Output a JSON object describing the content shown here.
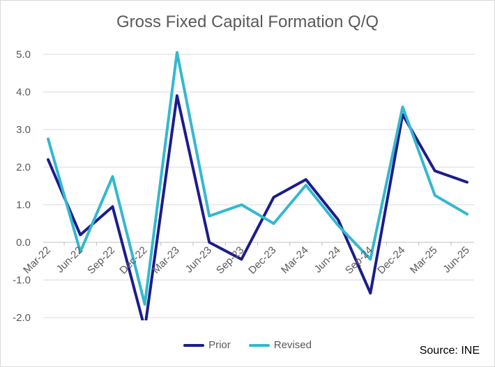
{
  "chart_data": {
    "type": "line",
    "title": "Gross Fixed Capital Formation Q/Q",
    "categories": [
      "Mar-22",
      "Jun-22",
      "Sep-22",
      "Dec-22",
      "Mar-23",
      "Jun-23",
      "Sep-23",
      "Dec-23",
      "Mar-24",
      "Jun-24",
      "Sep-24",
      "Dec-24",
      "Mar-25",
      "Jun-25"
    ],
    "series": [
      {
        "name": "Prior",
        "color": "#1c1c8c",
        "values": [
          2.2,
          0.2,
          0.95,
          -2.3,
          3.9,
          0.0,
          -0.45,
          1.2,
          1.67,
          0.6,
          -1.35,
          3.4,
          1.9,
          1.6
        ]
      },
      {
        "name": "Revised",
        "color": "#33b8cf",
        "values": [
          2.75,
          -0.25,
          1.75,
          -1.65,
          5.05,
          0.7,
          1.0,
          0.5,
          1.52,
          0.45,
          -0.45,
          3.6,
          1.25,
          0.75
        ]
      }
    ],
    "y_ticks": [
      "5.0",
      "4.0",
      "3.0",
      "2.0",
      "1.0",
      "0.0",
      "-1.0",
      "-2.0"
    ],
    "ylim": [
      -2.0,
      5.0
    ],
    "grid": true,
    "legend": "bottom",
    "source": "Source: INE"
  }
}
